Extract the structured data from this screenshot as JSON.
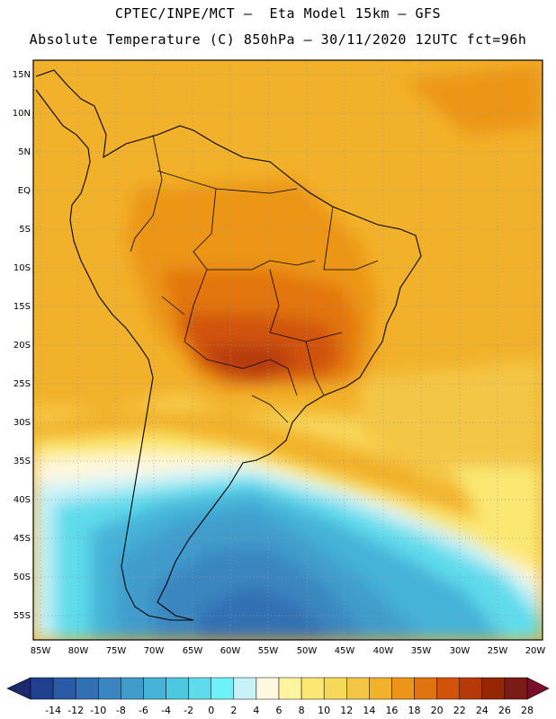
{
  "header": {
    "line1": "CPTEC/INPE/MCT –  Eta Model 15km – GFS",
    "line2": "Absolute Temperature (C) 850hPa – 30/11/2020 12UTC fct=96h"
  },
  "map": {
    "lat_labels": [
      "15N",
      "10N",
      "5N",
      "EQ",
      "5S",
      "10S",
      "15S",
      "20S",
      "25S",
      "30S",
      "35S",
      "40S",
      "45S",
      "50S",
      "55S"
    ],
    "lon_labels": [
      "85W",
      "80W",
      "75W",
      "70W",
      "65W",
      "60W",
      "55W",
      "50W",
      "45W",
      "40W",
      "35W",
      "30W",
      "25W",
      "20W"
    ],
    "region": "South America"
  },
  "colorbar": {
    "labels": [
      "-14",
      "-12",
      "-10",
      "-8",
      "-6",
      "-4",
      "-2",
      "0",
      "2",
      "4",
      "6",
      "8",
      "10",
      "12",
      "14",
      "16",
      "18",
      "20",
      "22",
      "24",
      "26",
      "28"
    ],
    "colors": [
      "#1f3f8f",
      "#2a5aa5",
      "#3270b4",
      "#3b86c0",
      "#3f9ccc",
      "#45b2d8",
      "#4ec8e0",
      "#5edcec",
      "#6ef2f8",
      "#c8f2fa",
      "#fff8e0",
      "#fff5a0",
      "#fbe873",
      "#f8d85a",
      "#f4c645",
      "#f2b12a",
      "#ec9518",
      "#e2740f",
      "#d0520b",
      "#b63a08",
      "#952705",
      "#7a1c14"
    ]
  }
}
